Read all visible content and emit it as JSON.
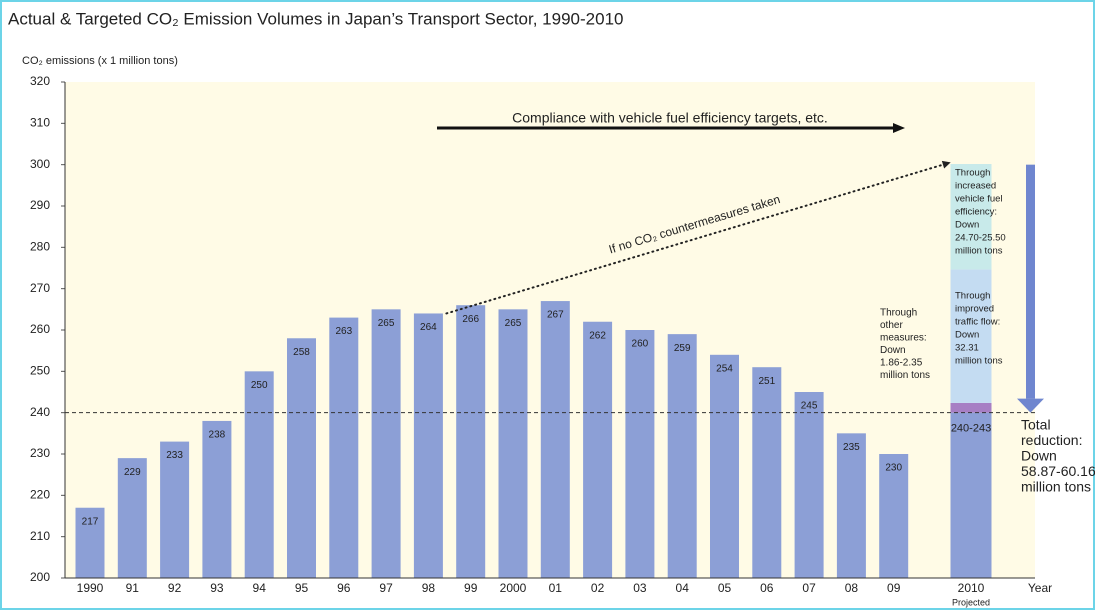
{
  "chart_data": {
    "type": "bar",
    "title": "Actual & Targeted CO₂ Emission Volumes in Japan’s Transport Sector, 1990-2010",
    "y_label": "CO₂ emissions (x 1 million tons)",
    "x_label": "Year",
    "categories": [
      "1990",
      "91",
      "92",
      "93",
      "94",
      "95",
      "96",
      "97",
      "98",
      "99",
      "2000",
      "01",
      "02",
      "03",
      "04",
      "05",
      "06",
      "07",
      "08",
      "09"
    ],
    "values": [
      217,
      229,
      233,
      238,
      250,
      258,
      263,
      265,
      264,
      266,
      265,
      267,
      262,
      260,
      259,
      254,
      251,
      245,
      235,
      230
    ],
    "color": "#8c9fd6",
    "ylim": [
      200,
      320
    ],
    "yticks": [
      200,
      210,
      220,
      230,
      240,
      250,
      260,
      270,
      280,
      290,
      300,
      310,
      320
    ],
    "projected": {
      "category": "2010",
      "note": "Projected",
      "segments": [
        {
          "value": 240,
          "color": "#8c9fd6"
        },
        {
          "value": 2.35,
          "color": "#a77fc4"
        },
        {
          "value": 32.31,
          "color": "#c4dcf2"
        },
        {
          "value": 25.5,
          "color": "#c8eaea"
        }
      ],
      "segment_label": "240-243"
    },
    "target_line": 240,
    "annotations": {
      "compliance": "Compliance with vehicle fuel efficiency targets, etc.",
      "no_countermeasures": {
        "text": "If no CO₂ countermeasures taken",
        "from": 264,
        "to": 300
      },
      "fuel_efficiency": [
        "Through",
        "increased",
        "vehicle fuel",
        "efficiency:",
        "Down",
        "24.70-25.50",
        "million tons"
      ],
      "traffic_flow": [
        "Through",
        "improved",
        "traffic flow:",
        "Down",
        "32.31",
        "million tons"
      ],
      "other_measures": [
        "Through",
        "other",
        "measures:",
        "Down",
        "1.86-2.35",
        "million tons"
      ],
      "total_reduction": [
        "Total",
        "reduction:",
        "Down",
        "58.87-60.16",
        "million tons"
      ]
    }
  }
}
